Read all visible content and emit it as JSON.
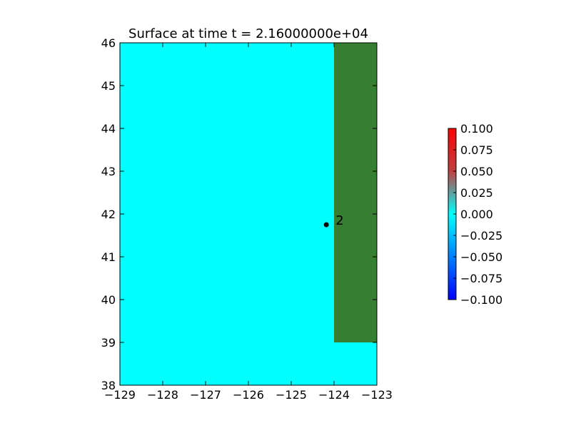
{
  "chart_data": {
    "type": "heatmap",
    "title": "Surface at time t = 2.16000000e+04",
    "xlabel": "",
    "ylabel": "",
    "xlim": [
      -129,
      -123
    ],
    "ylim": [
      38,
      46
    ],
    "grid": false,
    "x_ticks": [
      "−129",
      "−128",
      "−127",
      "−126",
      "−125",
      "−124",
      "−123"
    ],
    "y_ticks": [
      "38",
      "39",
      "40",
      "41",
      "42",
      "43",
      "44",
      "45",
      "46"
    ],
    "regions": [
      {
        "kind": "water",
        "color": "#00ffff",
        "x": [
          -129,
          -123
        ],
        "y": [
          38,
          46
        ],
        "value": 0.0
      },
      {
        "kind": "land",
        "color": "#357e32",
        "x": [
          -124,
          -123
        ],
        "y": [
          39,
          46
        ]
      }
    ],
    "markers": [
      {
        "label": "2",
        "x": -124.18,
        "y": 41.75,
        "color": "#000000"
      }
    ],
    "colorbar": {
      "min": -0.1,
      "max": 0.1,
      "ticks": [
        "0.100",
        "0.075",
        "0.050",
        "0.025",
        "0.000",
        "−0.025",
        "−0.050",
        "−0.075",
        "−0.100"
      ],
      "colors": [
        "#ff0000",
        "#7f7f7f",
        "#00ffff",
        "#0000ff"
      ],
      "placement": "right"
    }
  }
}
